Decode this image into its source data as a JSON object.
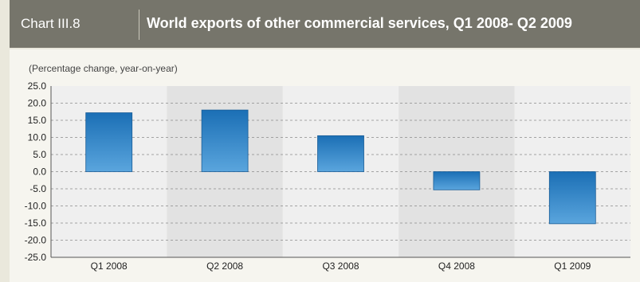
{
  "header": {
    "chart_number": "Chart III.8",
    "title": "World exports of other commercial services, Q1 2008- Q2 2009"
  },
  "colors": {
    "bar_top": "#1b6fb5",
    "bar_bottom": "#5aa5dd",
    "band_light": "#efefef",
    "band_dark": "#e2e2e2",
    "header_bg": "#76756b"
  },
  "chart_data": {
    "type": "bar",
    "subtitle": "(Percentage change, year-on-year)",
    "categories": [
      "Q1 2008",
      "Q2 2008",
      "Q3 2008",
      "Q4 2008",
      "Q1 2009"
    ],
    "values": [
      17.2,
      18.0,
      10.5,
      -5.3,
      -15.2
    ],
    "ylim": [
      -25.0,
      25.0
    ],
    "yticks": [
      "25.0",
      "20.0",
      "15.0",
      "10.0",
      "5.0",
      "0.0",
      "-5.0",
      "-10.0",
      "-15.0",
      "-20.0",
      "-25.0"
    ],
    "grid": true
  }
}
